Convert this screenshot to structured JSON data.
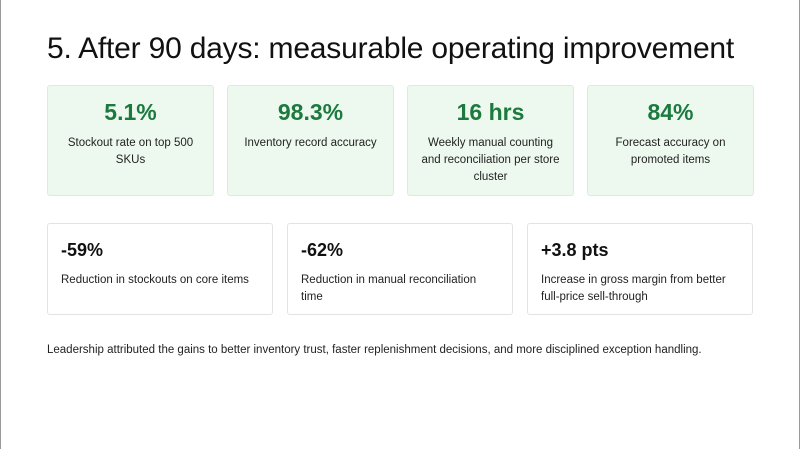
{
  "slide": {
    "title": "5. After 90 days: measurable operating improvement",
    "top_metrics": [
      {
        "value": "5.1%",
        "label": "Stockout rate on top 500 SKUs"
      },
      {
        "value": "98.3%",
        "label": "Inventory record accuracy"
      },
      {
        "value": "16 hrs",
        "label": "Weekly manual counting and reconciliation per store cluster"
      },
      {
        "value": "84%",
        "label": "Forecast accuracy on promoted items"
      }
    ],
    "change_metrics": [
      {
        "value": "-59%",
        "label": "Reduction in stockouts on core items"
      },
      {
        "value": "-62%",
        "label": "Reduction in manual reconciliation time"
      },
      {
        "value": "+3.8 pts",
        "label": "Increase in gross margin from better full-price sell-through"
      }
    ],
    "footnote": "Leadership attributed the gains to better inventory trust, faster replenishment decisions, and more disciplined exception handling."
  },
  "colors": {
    "accent_green": "#1c7a3e",
    "card_green_bg": "#edf9ef",
    "text": "#1a1a1a"
  }
}
